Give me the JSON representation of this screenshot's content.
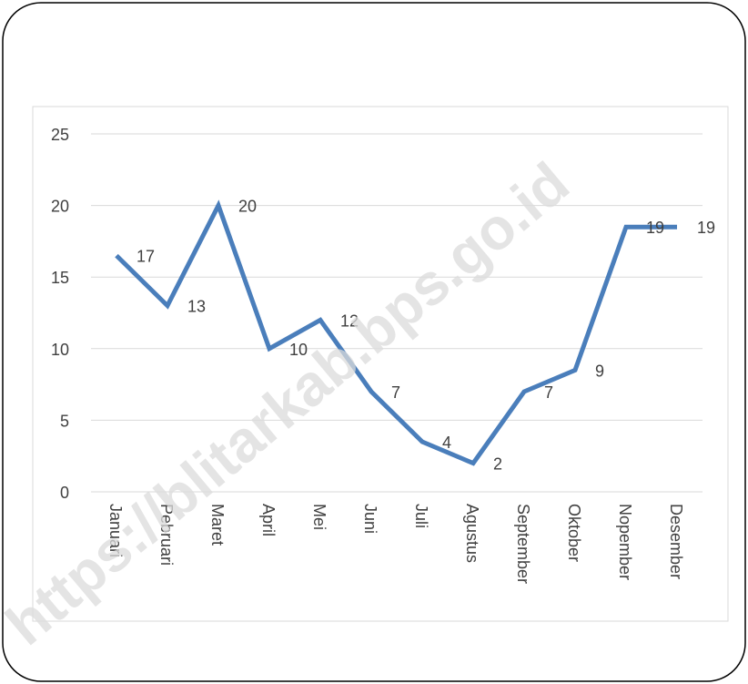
{
  "chart_data": {
    "type": "line",
    "categories": [
      "Januari",
      "Pebruari",
      "Maret",
      "April",
      "Mei",
      "Juni",
      "Juli",
      "Agustus",
      "September",
      "Oktober",
      "Nopember",
      "Desember"
    ],
    "values": [
      16.5,
      13,
      20,
      10,
      12,
      7,
      3.5,
      2,
      7,
      8.5,
      18.5,
      18.5
    ],
    "data_labels": [
      "17",
      "13",
      "20",
      "10",
      "12",
      "7",
      "4",
      "2",
      "7",
      "9",
      "19",
      "19"
    ],
    "yticks": [
      "0",
      "5",
      "10",
      "15",
      "20",
      "25"
    ],
    "ylim": [
      0,
      25
    ],
    "grid": true,
    "legend": "none",
    "line_color": "#4a7ebb",
    "grid_color": "#d9d9d9",
    "label_color": "#404040"
  },
  "watermark": "https://blitarkab.bps.go.id"
}
